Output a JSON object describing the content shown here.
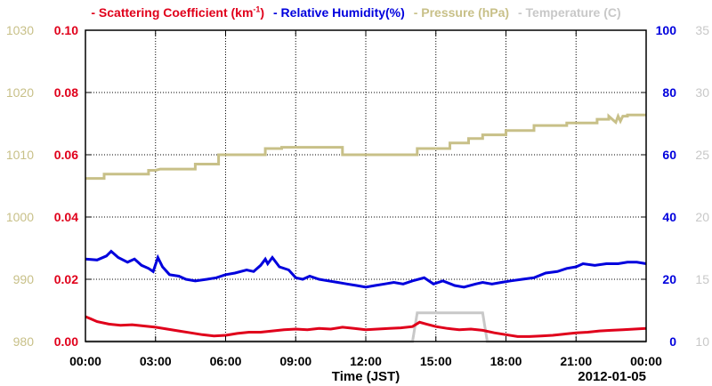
{
  "chart_data": {
    "type": "line",
    "legend": {
      "placement": "top",
      "entries": [
        {
          "marker": "-",
          "label_pre": "Scattering Coefficient (km",
          "label_sup": "-1",
          "label_post": ")",
          "color": "#e0001b"
        },
        {
          "marker": "-",
          "label": "Relative Humidity(%)",
          "color": "#0000dd"
        },
        {
          "marker": "-",
          "label": "Pressure (hPa)",
          "color": "#c8c088"
        },
        {
          "marker": "-",
          "label": "Temperature (C)",
          "color": "#c8c8c8"
        }
      ]
    },
    "xlabel": "Time (JST)",
    "date_label": "2012-01-05",
    "x_ticks": [
      "00:00",
      "03:00",
      "06:00",
      "09:00",
      "12:00",
      "15:00",
      "18:00",
      "21:00",
      "00:00"
    ],
    "xlim_hours": [
      0,
      24
    ],
    "grid": true,
    "axes": {
      "pressure": {
        "side": "left-outer",
        "color": "#c8c088",
        "ylim": [
          980,
          1030
        ],
        "ticks": [
          "980",
          "990",
          "1000",
          "1010",
          "1020",
          "1030"
        ]
      },
      "scattering": {
        "side": "left-inner",
        "color": "#e0001b",
        "ylim": [
          0,
          0.1
        ],
        "ticks": [
          "0.00",
          "0.02",
          "0.04",
          "0.06",
          "0.08",
          "0.10"
        ]
      },
      "humidity": {
        "side": "right-inner",
        "color": "#0000dd",
        "ylim": [
          0,
          100
        ],
        "ticks": [
          "0",
          "20",
          "40",
          "60",
          "80",
          "100"
        ]
      },
      "temperature": {
        "side": "right-outer",
        "color": "#c8c8c8",
        "ylim": [
          10,
          35
        ],
        "ticks": [
          "10",
          "15",
          "20",
          "25",
          "30",
          "35"
        ]
      }
    },
    "series": [
      {
        "name": "Pressure",
        "axis": "pressure",
        "color": "#c8c088",
        "x": [
          0,
          0.8,
          0.8,
          2.7,
          2.7,
          3.0,
          3.2,
          3.6,
          4.7,
          4.7,
          5.7,
          5.7,
          7.7,
          7.7,
          8.4,
          8.4,
          11.0,
          11.0,
          14.2,
          14.2,
          15.6,
          15.6,
          16.4,
          16.4,
          17.0,
          17.0,
          18.0,
          18.0,
          19.2,
          19.2,
          20.6,
          20.6,
          21.9,
          21.9,
          22.4,
          22.4,
          22.7,
          22.8,
          22.9,
          23.0,
          23.2,
          23.2,
          24.0
        ],
        "y": [
          1006.2,
          1006.2,
          1006.9,
          1006.9,
          1007.5,
          1007.5,
          1007.7,
          1007.7,
          1007.7,
          1008.5,
          1008.5,
          1010.0,
          1010.0,
          1011.0,
          1011.0,
          1011.2,
          1011.2,
          1010.0,
          1010.0,
          1011.0,
          1011.0,
          1011.9,
          1011.9,
          1012.6,
          1012.6,
          1013.2,
          1013.2,
          1013.9,
          1013.9,
          1014.7,
          1014.7,
          1015.1,
          1015.1,
          1015.7,
          1015.7,
          1016.2,
          1015.2,
          1016.2,
          1015.4,
          1016.2,
          1016.2,
          1016.4,
          1016.4
        ]
      },
      {
        "name": "Temperature",
        "axis": "temperature",
        "color": "#c8c8c8",
        "x": [
          0,
          14.0,
          14.2,
          17.0,
          17.2,
          24.0
        ],
        "y": [
          10.0,
          10.0,
          12.3,
          12.3,
          10.0,
          10.0
        ]
      },
      {
        "name": "Relative Humidity",
        "axis": "humidity",
        "color": "#0000dd",
        "x": [
          0,
          0.5,
          0.9,
          1.1,
          1.4,
          1.8,
          2.1,
          2.4,
          2.7,
          2.9,
          3.1,
          3.3,
          3.6,
          4.0,
          4.3,
          4.7,
          5.2,
          5.6,
          6.0,
          6.4,
          6.9,
          7.2,
          7.5,
          7.7,
          7.8,
          8.0,
          8.3,
          8.7,
          9.0,
          9.3,
          9.6,
          10.0,
          10.4,
          10.8,
          11.2,
          11.6,
          12.0,
          12.4,
          12.8,
          13.2,
          13.6,
          14.0,
          14.5,
          14.9,
          15.3,
          15.8,
          16.2,
          16.7,
          17.0,
          17.4,
          17.8,
          18.2,
          18.7,
          19.2,
          19.7,
          20.2,
          20.6,
          21.0,
          21.3,
          21.8,
          22.3,
          22.8,
          23.2,
          23.6,
          24.0
        ],
        "y": [
          26.5,
          26.2,
          27.5,
          29.0,
          27.0,
          25.5,
          26.5,
          24.5,
          23.5,
          22.5,
          27.0,
          24.0,
          21.5,
          21.0,
          20.0,
          19.5,
          20.0,
          20.5,
          21.5,
          22.0,
          23.0,
          22.5,
          24.5,
          26.5,
          25.0,
          27.0,
          24.0,
          23.0,
          20.5,
          20.0,
          21.0,
          20.0,
          19.5,
          19.0,
          18.5,
          18.0,
          17.5,
          18.0,
          18.5,
          19.0,
          18.5,
          19.5,
          20.5,
          18.5,
          19.5,
          18.0,
          17.5,
          18.5,
          19.0,
          18.5,
          19.0,
          19.5,
          20.0,
          20.5,
          22.0,
          22.5,
          23.5,
          24.0,
          25.0,
          24.5,
          25.0,
          25.0,
          25.5,
          25.5,
          25.0
        ]
      },
      {
        "name": "Scattering Coefficient",
        "axis": "scattering",
        "color": "#e0001b",
        "x": [
          0,
          0.25,
          0.5,
          1.0,
          1.5,
          2.0,
          2.5,
          3.0,
          3.5,
          4.0,
          4.5,
          5.0,
          5.5,
          6.0,
          6.5,
          7.0,
          7.5,
          8.0,
          8.5,
          9.0,
          9.5,
          10.0,
          10.5,
          11.0,
          11.5,
          12.0,
          12.5,
          13.0,
          13.5,
          14.0,
          14.3,
          14.6,
          15.0,
          15.5,
          16.0,
          16.5,
          17.0,
          17.5,
          18.0,
          18.5,
          19.0,
          19.5,
          20.0,
          20.5,
          21.0,
          21.5,
          22.0,
          22.5,
          23.0,
          23.5,
          24.0
        ],
        "y": [
          0.008,
          0.0072,
          0.0064,
          0.0056,
          0.0052,
          0.0054,
          0.005,
          0.0046,
          0.004,
          0.0034,
          0.0028,
          0.0022,
          0.0018,
          0.002,
          0.0026,
          0.003,
          0.003,
          0.0034,
          0.0038,
          0.004,
          0.0038,
          0.0042,
          0.004,
          0.0046,
          0.0042,
          0.0038,
          0.004,
          0.0042,
          0.0044,
          0.0048,
          0.0062,
          0.0056,
          0.0048,
          0.0042,
          0.0038,
          0.004,
          0.0036,
          0.0028,
          0.0022,
          0.0016,
          0.0016,
          0.0018,
          0.002,
          0.0024,
          0.0028,
          0.003,
          0.0034,
          0.0036,
          0.0038,
          0.004,
          0.0042
        ]
      }
    ]
  }
}
